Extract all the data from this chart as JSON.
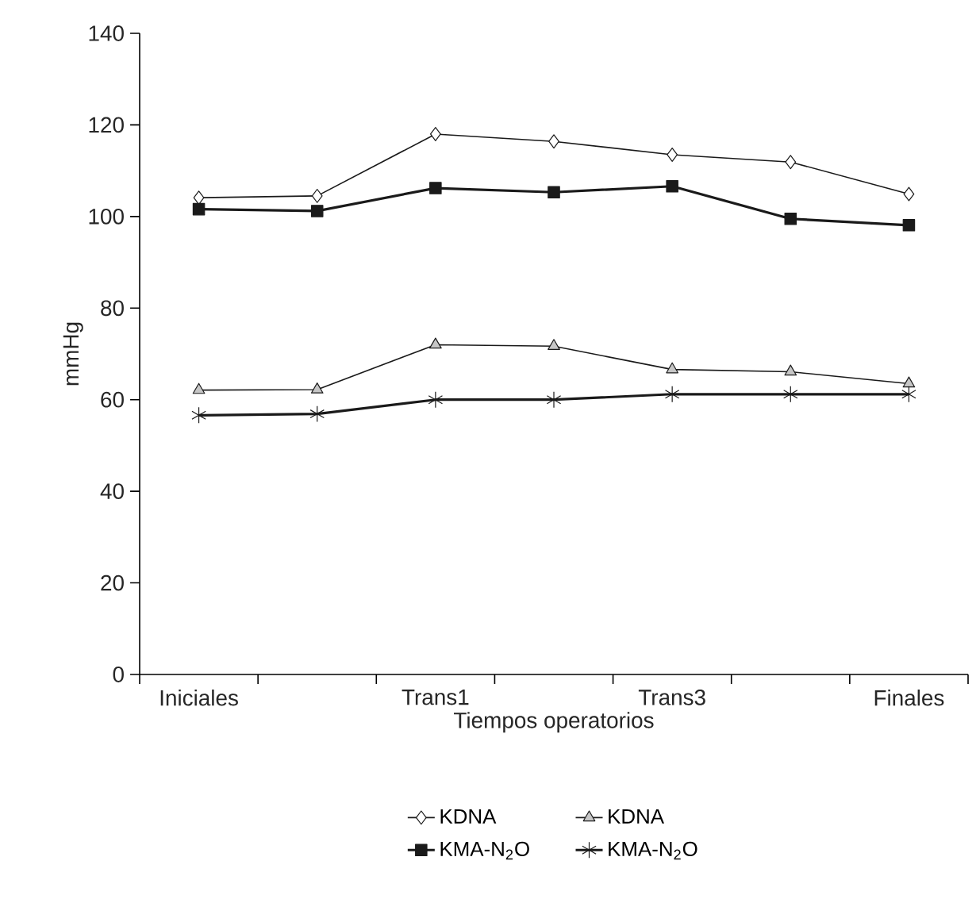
{
  "chart_data": {
    "type": "line",
    "xlabel": "Tiempos operatorios",
    "ylabel": "mmHg",
    "categories": [
      "Iniciales",
      null,
      "Trans1",
      null,
      "Trans3",
      null,
      "Finales"
    ],
    "ylim": [
      0,
      140
    ],
    "yticks": [
      0,
      20,
      40,
      60,
      80,
      100,
      120,
      140
    ],
    "grid": false,
    "legend": "bottom",
    "line_style": "solid",
    "series": [
      {
        "name": "KDNA",
        "color": "#1a1a1a",
        "marker": "diamond",
        "values": [
          104.1,
          104.5,
          118,
          116.4,
          113.5,
          111.9,
          104.9
        ]
      },
      {
        "name": "KDNA",
        "color": "#1a1a1a",
        "marker": "triangle",
        "values": [
          62.1,
          62.2,
          72,
          71.7,
          66.6,
          66.1,
          63.5
        ]
      },
      {
        "name": "KMA-N$_{2}$O",
        "color": "#1a1a1a",
        "marker": "square",
        "values": [
          101.6,
          101.2,
          106.2,
          105.3,
          106.6,
          99.5,
          98.1
        ]
      },
      {
        "name": "KMA-N$_{2}$O",
        "color": "#1a1a1a",
        "marker": "cross",
        "values": [
          56.6,
          56.9,
          60,
          60,
          61.2,
          61.2,
          61.2
        ]
      }
    ]
  }
}
